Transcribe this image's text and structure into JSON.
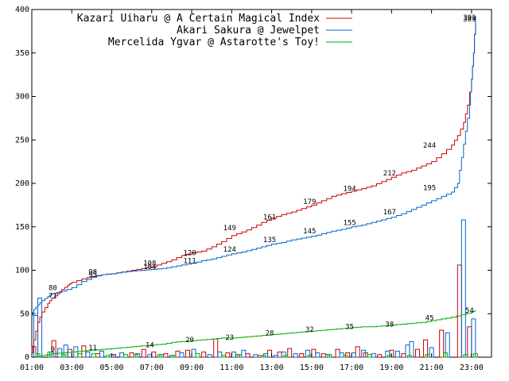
{
  "chart_data": {
    "type": "line",
    "title": "",
    "xlabel": "",
    "ylabel": "",
    "ylim": [
      0,
      400
    ],
    "xlim": [
      1,
      24
    ],
    "y_ticks": [
      0,
      50,
      100,
      150,
      200,
      250,
      300,
      350,
      400
    ],
    "x_ticks": [
      {
        "value": 1,
        "label": "01:00"
      },
      {
        "value": 3,
        "label": "03:00"
      },
      {
        "value": 5,
        "label": "05:00"
      },
      {
        "value": 7,
        "label": "07:00"
      },
      {
        "value": 9,
        "label": "09:00"
      },
      {
        "value": 11,
        "label": "11:00"
      },
      {
        "value": 13,
        "label": "13:00"
      },
      {
        "value": 15,
        "label": "15:00"
      },
      {
        "value": 17,
        "label": "17:00"
      },
      {
        "value": 19,
        "label": "19:00"
      },
      {
        "value": 21,
        "label": "21:00"
      },
      {
        "value": 23,
        "label": "23:00"
      }
    ],
    "legend_position": "top-right",
    "series": [
      {
        "name": "Kazari Uiharu @ A Certain Magical Index",
        "color": "#cc0000",
        "x": [
          1.0,
          1.1,
          1.3,
          1.5,
          1.8,
          2.0,
          2.3,
          2.5,
          2.8,
          3.0,
          3.5,
          4.0,
          4.5,
          5.0,
          5.5,
          6.0,
          6.5,
          7.0,
          7.5,
          8.0,
          8.5,
          9.0,
          9.5,
          10.0,
          10.5,
          11.0,
          11.5,
          12.0,
          12.5,
          13.0,
          13.5,
          14.0,
          14.5,
          15.0,
          15.5,
          16.0,
          16.5,
          17.0,
          17.5,
          18.0,
          18.5,
          19.0,
          19.5,
          20.0,
          20.5,
          21.0,
          21.5,
          22.0,
          22.3,
          22.6,
          22.8,
          23.0,
          23.1,
          23.2
        ],
        "y": [
          5,
          20,
          40,
          52,
          62,
          68,
          73,
          78,
          83,
          86,
          90,
          93,
          95,
          96,
          98,
          100,
          102,
          104,
          108,
          112,
          117,
          120,
          122,
          127,
          133,
          140,
          144,
          149,
          155,
          160,
          164,
          167,
          171,
          175,
          180,
          185,
          188,
          191,
          194,
          197,
          202,
          207,
          212,
          215,
          220,
          225,
          234,
          244,
          255,
          270,
          290,
          320,
          350,
          393
        ]
      },
      {
        "name": "Akari Sakura @ Jewelpet",
        "color": "#0066cc",
        "x": [
          1.0,
          1.1,
          1.3,
          1.5,
          1.8,
          2.0,
          2.5,
          3.0,
          3.5,
          4.0,
          4.5,
          5.0,
          5.5,
          6.0,
          6.5,
          7.0,
          7.5,
          8.0,
          8.5,
          9.0,
          9.5,
          10.0,
          10.5,
          11.0,
          11.5,
          12.0,
          12.5,
          13.0,
          13.5,
          14.0,
          14.5,
          15.0,
          15.5,
          16.0,
          16.5,
          17.0,
          17.5,
          18.0,
          18.5,
          19.0,
          19.5,
          20.0,
          20.5,
          21.0,
          21.5,
          22.0,
          22.3,
          22.5,
          22.7,
          22.9,
          23.0,
          23.1,
          23.2
        ],
        "y": [
          48,
          55,
          60,
          65,
          70,
          73,
          76,
          80,
          87,
          92,
          95,
          96,
          98,
          99,
          100,
          101,
          102,
          104,
          106,
          108,
          111,
          113,
          116,
          119,
          121,
          124,
          127,
          130,
          132,
          135,
          137,
          139,
          142,
          145,
          147,
          150,
          152,
          155,
          158,
          161,
          165,
          170,
          175,
          180,
          185,
          190,
          200,
          230,
          260,
          290,
          320,
          350,
          393
        ]
      },
      {
        "name": "Mercelida Ygvar @ Astarotte's Toy!",
        "color": "#00aa00",
        "x": [
          1.0,
          1.5,
          2.0,
          2.5,
          3.0,
          3.5,
          4.0,
          4.5,
          5.0,
          5.5,
          6.0,
          6.5,
          7.0,
          7.5,
          8.0,
          8.5,
          9.0,
          9.5,
          10.0,
          10.5,
          11.0,
          11.5,
          12.0,
          12.5,
          13.0,
          13.5,
          14.0,
          14.5,
          15.0,
          15.5,
          16.0,
          16.5,
          17.0,
          17.5,
          18.0,
          18.5,
          19.0,
          19.5,
          20.0,
          20.5,
          21.0,
          21.5,
          22.0,
          22.5,
          23.0,
          23.2
        ],
        "y": [
          0,
          2,
          4,
          5,
          6,
          7,
          8,
          9,
          10,
          11,
          12,
          13,
          14,
          15,
          17,
          18,
          19,
          20,
          21,
          22,
          22,
          23,
          24,
          25,
          26,
          27,
          28,
          29,
          30,
          31,
          32,
          33,
          34,
          35,
          35,
          36,
          37,
          38,
          39,
          40,
          42,
          44,
          46,
          49,
          52,
          54
        ]
      }
    ],
    "bars": [
      {
        "series": 0,
        "values": [
          [
            1.1,
            12
          ],
          [
            2.1,
            19
          ],
          [
            2.9,
            9
          ],
          [
            3.6,
            13
          ],
          [
            4.3,
            4
          ],
          [
            5.1,
            3
          ],
          [
            6.0,
            5
          ],
          [
            6.6,
            9
          ],
          [
            7.1,
            6
          ],
          [
            7.7,
            4
          ],
          [
            8.3,
            7
          ],
          [
            8.8,
            8
          ],
          [
            9.6,
            6
          ],
          [
            10.2,
            21
          ],
          [
            10.8,
            5
          ],
          [
            11.3,
            3
          ],
          [
            11.8,
            4
          ],
          [
            12.4,
            2
          ],
          [
            12.9,
            8
          ],
          [
            13.4,
            6
          ],
          [
            13.9,
            10
          ],
          [
            14.5,
            4
          ],
          [
            15.1,
            9
          ],
          [
            15.6,
            4
          ],
          [
            16.3,
            9
          ],
          [
            16.8,
            5
          ],
          [
            17.3,
            12
          ],
          [
            17.7,
            5
          ],
          [
            18.4,
            3
          ],
          [
            19.0,
            8
          ],
          [
            19.6,
            4
          ],
          [
            20.3,
            9
          ],
          [
            20.7,
            20
          ],
          [
            21.5,
            31
          ],
          [
            22.4,
            106
          ],
          [
            22.9,
            35
          ]
        ]
      },
      {
        "series": 1,
        "values": [
          [
            1.2,
            48
          ],
          [
            1.4,
            68
          ],
          [
            2.0,
            6
          ],
          [
            2.4,
            10
          ],
          [
            2.7,
            14
          ],
          [
            3.2,
            12
          ],
          [
            3.8,
            6
          ],
          [
            4.5,
            7
          ],
          [
            5.0,
            3
          ],
          [
            5.5,
            5
          ],
          [
            6.3,
            4
          ],
          [
            6.9,
            3
          ],
          [
            7.5,
            3
          ],
          [
            8.0,
            2
          ],
          [
            8.5,
            5
          ],
          [
            9.1,
            9
          ],
          [
            9.9,
            3
          ],
          [
            10.4,
            6
          ],
          [
            11.1,
            6
          ],
          [
            11.6,
            8
          ],
          [
            12.2,
            3
          ],
          [
            12.7,
            4
          ],
          [
            13.2,
            2
          ],
          [
            13.6,
            6
          ],
          [
            14.2,
            4
          ],
          [
            14.8,
            8
          ],
          [
            15.3,
            5
          ],
          [
            15.8,
            3
          ],
          [
            16.5,
            5
          ],
          [
            17.1,
            5
          ],
          [
            17.6,
            8
          ],
          [
            18.1,
            4
          ],
          [
            18.8,
            7
          ],
          [
            19.3,
            7
          ],
          [
            19.8,
            14
          ],
          [
            20.0,
            18
          ],
          [
            21.0,
            11
          ],
          [
            21.8,
            28
          ],
          [
            22.6,
            158
          ],
          [
            23.1,
            44
          ]
        ]
      },
      {
        "series": 2,
        "values": [
          [
            1.3,
            4
          ],
          [
            1.9,
            6
          ],
          [
            2.6,
            3
          ],
          [
            3.4,
            4
          ],
          [
            4.1,
            4
          ],
          [
            4.8,
            2
          ],
          [
            5.7,
            3
          ],
          [
            6.2,
            3
          ],
          [
            7.4,
            3
          ],
          [
            8.1,
            2
          ],
          [
            9.3,
            4
          ],
          [
            10.6,
            2
          ],
          [
            11.4,
            3
          ],
          [
            12.6,
            2
          ],
          [
            13.7,
            2
          ],
          [
            14.9,
            2
          ],
          [
            15.9,
            3
          ],
          [
            16.7,
            2
          ],
          [
            17.9,
            3
          ],
          [
            18.9,
            2
          ],
          [
            19.9,
            2
          ],
          [
            20.8,
            3
          ],
          [
            21.7,
            5
          ],
          [
            22.7,
            3
          ],
          [
            23.2,
            4
          ]
        ]
      }
    ],
    "annotations": [
      {
        "series": 0,
        "x": 2.05,
        "y": 71,
        "text": "71"
      },
      {
        "series": 0,
        "x": 4.05,
        "y": 95,
        "text": "95"
      },
      {
        "series": 0,
        "x": 6.9,
        "y": 108,
        "text": "108"
      },
      {
        "series": 0,
        "x": 8.9,
        "y": 120,
        "text": "120"
      },
      {
        "series": 0,
        "x": 10.9,
        "y": 149,
        "text": "149"
      },
      {
        "series": 0,
        "x": 12.9,
        "y": 161,
        "text": "161"
      },
      {
        "series": 0,
        "x": 14.9,
        "y": 179,
        "text": "179"
      },
      {
        "series": 0,
        "x": 16.9,
        "y": 194,
        "text": "194"
      },
      {
        "series": 0,
        "x": 18.9,
        "y": 212,
        "text": "212"
      },
      {
        "series": 0,
        "x": 20.9,
        "y": 244,
        "text": "244"
      },
      {
        "series": 0,
        "x": 22.9,
        "y": 391,
        "text": "391"
      },
      {
        "series": 1,
        "x": 2.05,
        "y": 80,
        "text": "80"
      },
      {
        "series": 1,
        "x": 4.05,
        "y": 98,
        "text": "98"
      },
      {
        "series": 1,
        "x": 6.9,
        "y": 104,
        "text": "104"
      },
      {
        "series": 1,
        "x": 8.9,
        "y": 111,
        "text": "111"
      },
      {
        "series": 1,
        "x": 10.9,
        "y": 124,
        "text": "124"
      },
      {
        "series": 1,
        "x": 12.9,
        "y": 135,
        "text": "135"
      },
      {
        "series": 1,
        "x": 14.9,
        "y": 145,
        "text": "145"
      },
      {
        "series": 1,
        "x": 16.9,
        "y": 155,
        "text": "155"
      },
      {
        "series": 1,
        "x": 18.9,
        "y": 167,
        "text": "167"
      },
      {
        "series": 1,
        "x": 20.9,
        "y": 195,
        "text": "195"
      },
      {
        "series": 1,
        "x": 22.9,
        "y": 389,
        "text": "389"
      },
      {
        "series": 2,
        "x": 2.05,
        "y": 9,
        "text": "9"
      },
      {
        "series": 2,
        "x": 4.05,
        "y": 11,
        "text": "11"
      },
      {
        "series": 2,
        "x": 6.9,
        "y": 14,
        "text": "14"
      },
      {
        "series": 2,
        "x": 8.9,
        "y": 20,
        "text": "20"
      },
      {
        "series": 2,
        "x": 10.9,
        "y": 23,
        "text": "23"
      },
      {
        "series": 2,
        "x": 12.9,
        "y": 28,
        "text": "28"
      },
      {
        "series": 2,
        "x": 14.9,
        "y": 32,
        "text": "32"
      },
      {
        "series": 2,
        "x": 16.9,
        "y": 35,
        "text": "35"
      },
      {
        "series": 2,
        "x": 18.9,
        "y": 38,
        "text": "38"
      },
      {
        "series": 2,
        "x": 20.9,
        "y": 45,
        "text": "45"
      },
      {
        "series": 2,
        "x": 22.9,
        "y": 54,
        "text": "54"
      }
    ]
  }
}
